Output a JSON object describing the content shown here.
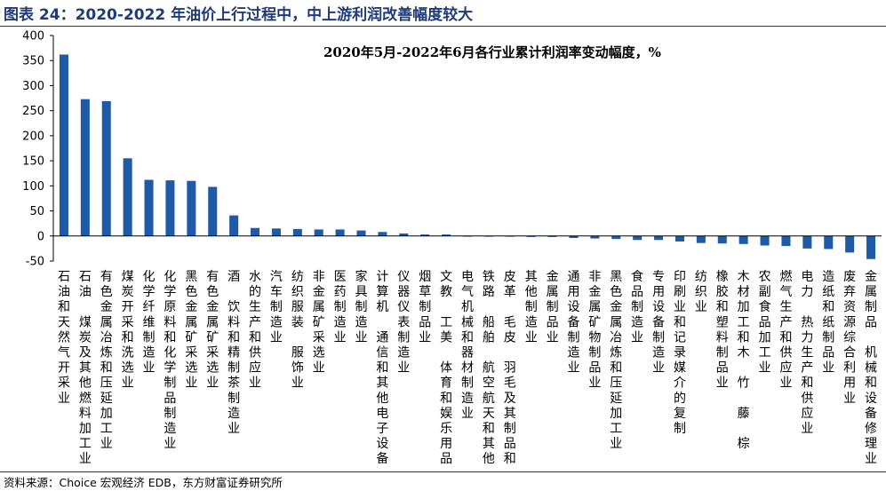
{
  "figure": {
    "title": "图表 24：2020-2022 年油价上行过程中，中上游利润改善幅度较大",
    "source": "资料来源：Choice 宏观经济 EDB，东方财富证券研究所"
  },
  "colors": {
    "bar": "#1f5aa6",
    "title": "#1f3b78",
    "axis": "#000000"
  },
  "chart_data": {
    "type": "bar",
    "title": "2020年5月-2022年6月各行业累计利润率变动幅度，%",
    "xlabel": "",
    "ylabel": "",
    "ylim": [
      -50,
      400
    ],
    "yticks": [
      400,
      350,
      300,
      250,
      200,
      150,
      100,
      50,
      0,
      -50
    ],
    "grid": false,
    "legend": "none",
    "categories": [
      "石油和天然气开采业",
      "石油、煤炭及其他燃料加工业",
      "有色金属冶炼和压延加工业",
      "煤炭开采和洗选业",
      "化学纤维制造业",
      "化学原料和化学制品制造业",
      "黑色金属矿采选业",
      "有色金属矿采选业",
      "酒、饮料和精制茶制造业",
      "水的生产和供应业",
      "汽车制造业",
      "纺织服装、服饰业",
      "非金属矿采选业",
      "医药制造业",
      "家具制造业",
      "计算机、通信和其他电子设备",
      "仪器仪表制造业",
      "烟草制品业",
      "文教、工美、体育和娱乐用品",
      "电气机械和器材制造业",
      "铁路、船舶、航空航天和其他",
      "皮革、毛皮、羽毛及其制品和",
      "其他制造业",
      "金属制品业",
      "通用设备制造业",
      "非金属矿物制品业",
      "黑色金属冶炼和压延加工业",
      "食品制造业",
      "专用设备制造业",
      "印刷业和记录媒介的复制",
      "纺织业",
      "橡胶和塑料制品业",
      "木材加工和木、竹、藤、棕",
      "农副食品加工业",
      "燃气生产和供应业",
      "电力、热力生产和供应业",
      "造纸和纸制品业",
      "废弃资源综合利用业",
      "金属制品、机械和设备修理业"
    ],
    "values": [
      362,
      273,
      269,
      155,
      112,
      111,
      110,
      98,
      41,
      16,
      15,
      14,
      13,
      13,
      11,
      8,
      5,
      3,
      3,
      -1,
      -1,
      -1,
      -2,
      -2,
      -4,
      -5,
      -6,
      -8,
      -8,
      -11,
      -14,
      -15,
      -16,
      -19,
      -20,
      -25,
      -26,
      -33,
      -46
    ]
  }
}
